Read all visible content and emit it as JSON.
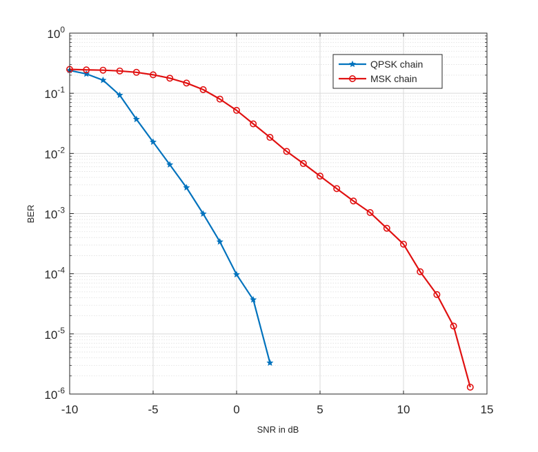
{
  "chart_data": {
    "type": "line",
    "xlabel": "SNR in dB",
    "ylabel": "BER",
    "xlim": [
      -10,
      15
    ],
    "ylim": [
      1e-06,
      1
    ],
    "yscale": "log",
    "grid": true,
    "minor_grid": true,
    "legend_position": "top-right",
    "x_ticks": [
      {
        "value": -10,
        "label": "-10"
      },
      {
        "value": -5,
        "label": "-5"
      },
      {
        "value": 0,
        "label": "0"
      },
      {
        "value": 5,
        "label": "5"
      },
      {
        "value": 10,
        "label": "10"
      },
      {
        "value": 15,
        "label": "15"
      }
    ],
    "y_ticks": [
      {
        "value": 1,
        "base": "10",
        "exp": "0"
      },
      {
        "value": 0.1,
        "base": "10",
        "exp": "-1"
      },
      {
        "value": 0.01,
        "base": "10",
        "exp": "-2"
      },
      {
        "value": 0.001,
        "base": "10",
        "exp": "-3"
      },
      {
        "value": 0.0001,
        "base": "10",
        "exp": "-4"
      },
      {
        "value": 1e-05,
        "base": "10",
        "exp": "-5"
      },
      {
        "value": 1e-06,
        "base": "10",
        "exp": "-6"
      }
    ],
    "series": [
      {
        "name": "QPSK chain",
        "color": "#0072BD",
        "marker": "star",
        "x": [
          -10,
          -9,
          -8,
          -7,
          -6,
          -5,
          -4,
          -3,
          -2,
          -1,
          0,
          1,
          2
        ],
        "y": [
          0.24,
          0.21,
          0.165,
          0.093,
          0.037,
          0.0155,
          0.0065,
          0.0027,
          0.00099,
          0.00034,
          9.7e-05,
          3.7e-05,
          3.3e-06
        ]
      },
      {
        "name": "MSK chain",
        "color": "#E01010",
        "marker": "circle",
        "x": [
          -10,
          -9,
          -8,
          -7,
          -6,
          -5,
          -4,
          -3,
          -2,
          -1,
          0,
          1,
          2,
          3,
          4,
          5,
          6,
          7,
          8,
          9,
          10,
          11,
          12,
          13,
          14
        ],
        "y": [
          0.25,
          0.245,
          0.242,
          0.235,
          0.223,
          0.203,
          0.178,
          0.148,
          0.115,
          0.08,
          0.052,
          0.031,
          0.0185,
          0.0108,
          0.0068,
          0.0042,
          0.0026,
          0.00162,
          0.00104,
          0.00057,
          0.00031,
          0.000108,
          4.5e-05,
          1.35e-05,
          1.3e-06
        ]
      }
    ]
  }
}
